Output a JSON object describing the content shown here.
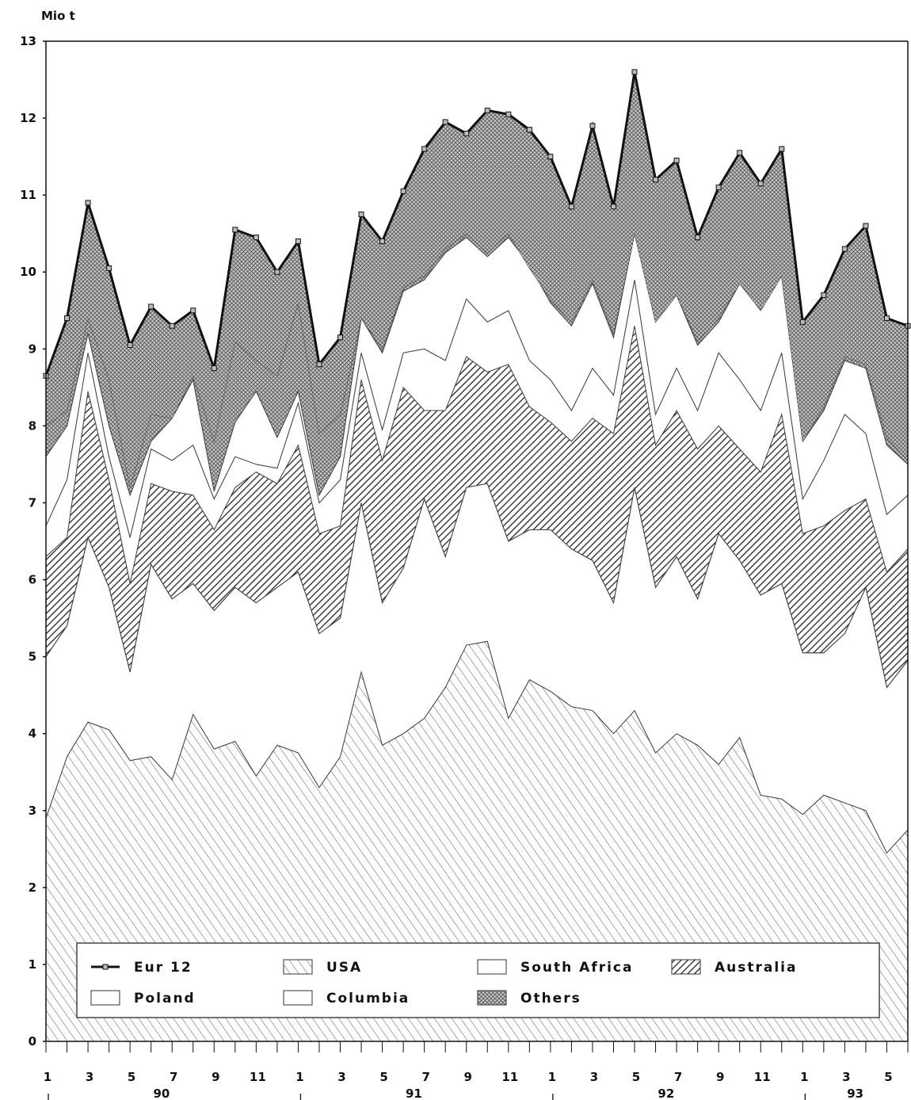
{
  "chart_data": {
    "type": "area",
    "ylabel": "Mio t",
    "ylim": [
      0,
      13
    ],
    "yticks": [
      0,
      1,
      2,
      3,
      4,
      5,
      6,
      7,
      8,
      9,
      10,
      11,
      12,
      13
    ],
    "month_tick_labels": [
      "1",
      "3",
      "5",
      "7",
      "9",
      "11",
      "1",
      "3",
      "5",
      "7",
      "9",
      "11",
      "1",
      "3",
      "5",
      "7",
      "9",
      "11",
      "1",
      "3",
      "5"
    ],
    "year_labels": [
      "90",
      "91",
      "92",
      "93"
    ],
    "x": [
      "90-1",
      "90-2",
      "90-3",
      "90-4",
      "90-5",
      "90-6",
      "90-7",
      "90-8",
      "90-9",
      "90-10",
      "90-11",
      "90-12",
      "91-1",
      "91-2",
      "91-3",
      "91-4",
      "91-5",
      "91-6",
      "91-7",
      "91-8",
      "91-9",
      "91-10",
      "91-11",
      "91-12",
      "92-1",
      "92-2",
      "92-3",
      "92-4",
      "92-5",
      "92-6",
      "92-7",
      "92-8",
      "92-9",
      "92-10",
      "92-11",
      "92-12",
      "93-1",
      "93-2",
      "93-3",
      "93-4",
      "93-5",
      "93-6"
    ],
    "series": [
      {
        "name": "USA",
        "fill": "hatch-light",
        "cumulative": [
          2.9,
          3.7,
          4.15,
          4.05,
          3.65,
          3.7,
          3.4,
          4.25,
          3.8,
          3.9,
          3.45,
          3.85,
          3.75,
          3.3,
          3.7,
          4.8,
          3.85,
          4.0,
          4.2,
          4.6,
          5.15,
          5.2,
          4.2,
          4.7,
          4.55,
          4.35,
          4.3,
          4.0,
          4.3,
          3.75,
          4.0,
          3.85,
          3.6,
          3.95,
          3.2,
          3.15,
          2.95,
          3.2,
          3.1,
          3.0,
          2.45,
          2.75
        ]
      },
      {
        "name": "Poland",
        "fill": "blank",
        "cumulative": [
          5.0,
          5.4,
          6.55,
          5.9,
          4.8,
          6.2,
          5.75,
          5.95,
          5.6,
          5.9,
          5.7,
          5.9,
          6.1,
          5.3,
          5.5,
          7.0,
          5.7,
          6.15,
          7.05,
          6.3,
          7.2,
          7.25,
          6.5,
          6.65,
          6.65,
          6.4,
          6.25,
          5.7,
          7.2,
          5.9,
          6.3,
          5.75,
          6.6,
          6.25,
          5.8,
          5.95,
          5.05,
          5.05,
          5.3,
          5.9,
          4.6,
          4.95
        ]
      },
      {
        "name": "Australia",
        "fill": "hatch-dense",
        "cumulative": [
          6.3,
          6.55,
          8.45,
          7.3,
          5.95,
          7.25,
          7.15,
          7.1,
          6.65,
          7.2,
          7.4,
          7.25,
          7.75,
          6.6,
          6.7,
          8.6,
          7.55,
          8.5,
          8.2,
          8.2,
          8.9,
          8.7,
          8.8,
          8.25,
          8.05,
          7.8,
          8.1,
          7.9,
          9.3,
          7.75,
          8.2,
          7.7,
          8.0,
          7.7,
          7.4,
          8.15,
          6.6,
          6.7,
          6.9,
          7.05,
          6.1,
          6.4
        ]
      },
      {
        "name": "Columbia",
        "fill": "blank",
        "cumulative": [
          6.7,
          7.3,
          8.95,
          7.6,
          6.55,
          7.7,
          7.55,
          7.75,
          7.05,
          7.6,
          7.5,
          7.45,
          8.3,
          7.0,
          7.3,
          8.95,
          7.95,
          8.95,
          9.0,
          8.85,
          9.65,
          9.35,
          9.5,
          8.85,
          8.6,
          8.2,
          8.75,
          8.4,
          9.9,
          8.15,
          8.75,
          8.2,
          8.95,
          8.6,
          8.2,
          8.95,
          7.05,
          7.55,
          8.15,
          7.9,
          6.85,
          7.1
        ]
      },
      {
        "name": "South Africa",
        "fill": "blank",
        "cumulative": [
          7.6,
          8.0,
          9.2,
          8.0,
          7.1,
          7.8,
          8.1,
          8.6,
          7.15,
          8.05,
          8.45,
          7.85,
          8.45,
          7.1,
          7.6,
          9.4,
          8.95,
          9.75,
          9.9,
          10.25,
          10.45,
          10.2,
          10.45,
          10.1,
          9.6,
          9.3,
          9.85,
          9.15,
          10.5,
          9.35,
          9.7,
          9.05,
          9.35,
          9.85,
          9.5,
          9.95,
          7.8,
          8.2,
          8.85,
          8.75,
          7.75,
          7.5
        ]
      },
      {
        "name": "Others",
        "fill": "dots",
        "cumulative": [
          8.0,
          8.2,
          9.4,
          8.6,
          7.2,
          8.15,
          8.1,
          8.65,
          7.8,
          9.1,
          8.85,
          8.65,
          9.6,
          7.9,
          8.15,
          9.4,
          9.0,
          9.8,
          9.95,
          10.3,
          10.5,
          10.25,
          10.5,
          10.05,
          9.65,
          9.35,
          9.9,
          9.2,
          10.5,
          9.35,
          9.7,
          9.1,
          9.4,
          9.85,
          9.5,
          9.95,
          7.8,
          8.25,
          8.9,
          8.8,
          7.85,
          7.55
        ]
      },
      {
        "name": "Eur 12",
        "fill": "line",
        "values": [
          8.65,
          9.4,
          10.9,
          10.05,
          9.05,
          9.55,
          9.3,
          9.5,
          8.75,
          10.55,
          10.45,
          10.0,
          10.4,
          8.8,
          9.15,
          10.75,
          10.4,
          11.05,
          11.6,
          11.95,
          11.8,
          12.1,
          12.05,
          11.85,
          11.5,
          10.85,
          11.9,
          10.85,
          12.6,
          11.2,
          11.45,
          10.45,
          11.1,
          11.55,
          11.15,
          11.6,
          9.35,
          9.7,
          10.3,
          10.6,
          9.4,
          9.3
        ]
      }
    ],
    "legend": {
      "placement": "bottom-inside",
      "items": [
        {
          "label": "Eur 12",
          "symbol": "line"
        },
        {
          "label": "USA",
          "symbol": "hatch-light"
        },
        {
          "label": "South Africa",
          "symbol": "blank"
        },
        {
          "label": "Australia",
          "symbol": "hatch-dense"
        },
        {
          "label": "Poland",
          "symbol": "blank"
        },
        {
          "label": "Columbia",
          "symbol": "blank"
        },
        {
          "label": "Others",
          "symbol": "dots"
        }
      ]
    },
    "grid": false
  }
}
